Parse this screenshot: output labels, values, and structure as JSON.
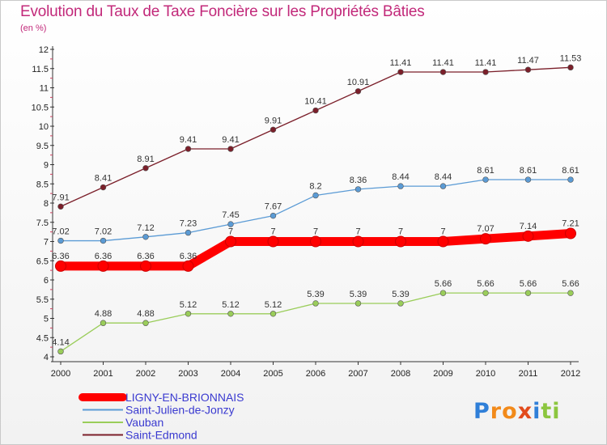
{
  "title": "Evolution du Taux de Taxe Foncière sur les Propriétés Bâties",
  "subtitle": "(en %)",
  "logo": {
    "letters": [
      {
        "ch": "P",
        "color": "#2f7fd8"
      },
      {
        "ch": "r",
        "color": "#f28a1a"
      },
      {
        "ch": "o",
        "color": "#f28a1a"
      },
      {
        "ch": "x",
        "color": "#e24b1c"
      },
      {
        "ch": "i",
        "color": "#2f7fd8"
      },
      {
        "ch": "t",
        "color": "#8cc63f"
      },
      {
        "ch": "i",
        "color": "#8cc63f"
      }
    ]
  },
  "chart_data": {
    "type": "line",
    "x": [
      2000,
      2001,
      2002,
      2003,
      2004,
      2005,
      2006,
      2007,
      2008,
      2009,
      2010,
      2011,
      2012
    ],
    "ylim": [
      4,
      12
    ],
    "yticks": [
      "4",
      "4.5",
      "5",
      "5.5",
      "6",
      "6.5",
      "7",
      "7.5",
      "8",
      "8.5",
      "9",
      "9.5",
      "10",
      "10.5",
      "11",
      "11.5",
      "12"
    ],
    "legend_position": "bottom-left",
    "series": [
      {
        "name": "LIGNY-EN-BRIONNAIS",
        "color": "#ff0000",
        "emphasis": true,
        "values": [
          6.36,
          6.36,
          6.36,
          6.36,
          7,
          7,
          7,
          7,
          7,
          7,
          7.07,
          7.14,
          7.21
        ],
        "labels": [
          "6.36",
          "6.36",
          "6.36",
          "6.36",
          "7",
          "7",
          "7",
          "7",
          "7",
          "7",
          "7.07",
          "7.14",
          "7.21"
        ]
      },
      {
        "name": "Saint-Julien-de-Jonzy",
        "color": "#5b9bd5",
        "emphasis": false,
        "values": [
          7.02,
          7.02,
          7.12,
          7.23,
          7.45,
          7.67,
          8.2,
          8.36,
          8.44,
          8.44,
          8.61,
          8.61,
          8.61
        ],
        "labels": [
          "7.02",
          "7.02",
          "7.12",
          "7.23",
          "7.45",
          "7.67",
          "8.2",
          "8.36",
          "8.44",
          "8.44",
          "8.61",
          "8.61",
          "8.61"
        ]
      },
      {
        "name": "Vauban",
        "color": "#9acd5a",
        "emphasis": false,
        "values": [
          4.14,
          4.88,
          4.88,
          5.12,
          5.12,
          5.12,
          5.39,
          5.39,
          5.39,
          5.66,
          5.66,
          5.66,
          5.66
        ],
        "labels": [
          "4.14",
          "4.88",
          "4.88",
          "5.12",
          "5.12",
          "5.12",
          "5.39",
          "5.39",
          "5.39",
          "5.66",
          "5.66",
          "5.66",
          "5.66"
        ]
      },
      {
        "name": "Saint-Edmond",
        "color": "#7b1f2a",
        "emphasis": false,
        "values": [
          7.91,
          8.41,
          8.91,
          9.41,
          9.41,
          9.91,
          10.41,
          10.91,
          11.41,
          11.41,
          11.41,
          11.47,
          11.53
        ],
        "labels": [
          "7.91",
          "8.41",
          "8.91",
          "9.41",
          "9.41",
          "9.91",
          "10.41",
          "10.91",
          "11.41",
          "11.41",
          "11.41",
          "11.47",
          "11.53"
        ]
      }
    ]
  }
}
